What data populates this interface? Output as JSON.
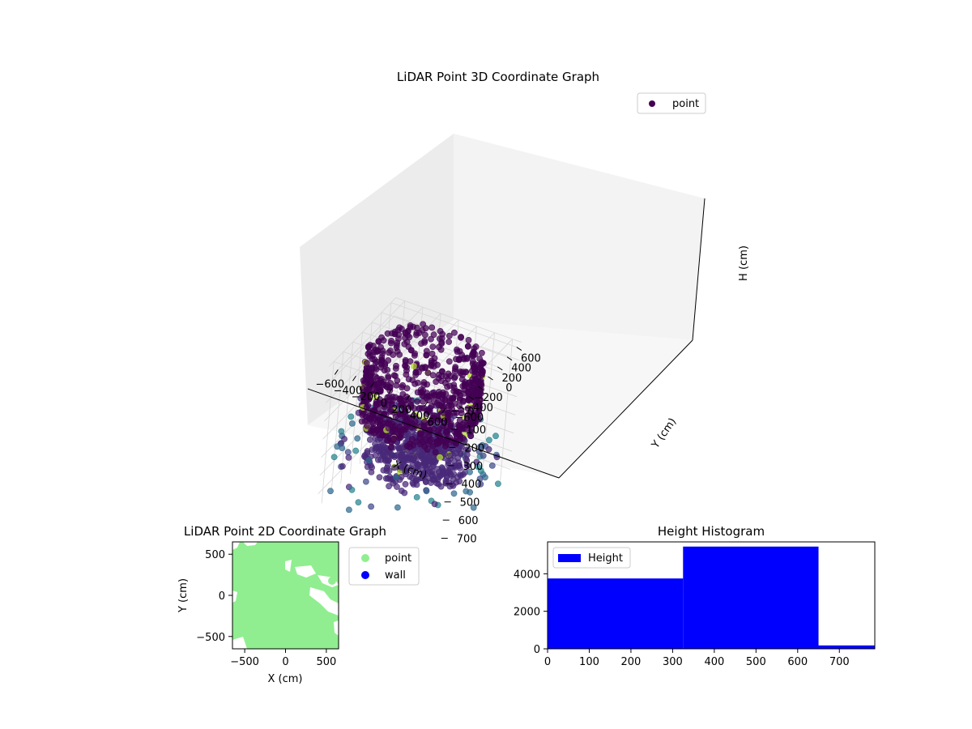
{
  "chart_data": [
    {
      "type": "scatter",
      "title": "LiDAR Point 3D Coordinate Graph",
      "xlabel": "X (cm)",
      "ylabel": "Y (cm)",
      "zlabel": "H (cm)",
      "projection": "3d",
      "x_ticks": [
        "−600",
        "−400",
        "−200",
        "0",
        "200",
        "400",
        "600"
      ],
      "y_ticks": [
        "−600",
        "−400",
        "−200",
        "0",
        "200",
        "400",
        "600"
      ],
      "z_ticks": [
        "0",
        "100",
        "200",
        "300",
        "400",
        "500",
        "600",
        "700"
      ],
      "xlim": [
        -700,
        700
      ],
      "ylim": [
        -700,
        700
      ],
      "zlim": [
        0,
        780
      ],
      "z_inverted": true,
      "colormap": "viridis",
      "legend": [
        {
          "name": "point",
          "color": "#440154"
        }
      ],
      "legend_position": "top-right",
      "grid": true
    },
    {
      "type": "scatter",
      "title": "LiDAR Point 2D Coordinate Graph",
      "xlabel": "X (cm)",
      "ylabel": "Y (cm)",
      "x_ticks": [
        "−500",
        "0",
        "500"
      ],
      "y_ticks": [
        "500",
        "0",
        "−500"
      ],
      "xlim": [
        -650,
        650
      ],
      "ylim": [
        -650,
        650
      ],
      "series": [
        {
          "name": "point",
          "color": "#90ee90"
        },
        {
          "name": "wall",
          "color": "#0000ff"
        }
      ],
      "legend_position": "outside-right"
    },
    {
      "type": "bar",
      "title": "Height Histogram",
      "legend": [
        {
          "name": "Height",
          "color": "#0000ff"
        }
      ],
      "legend_position": "top-left",
      "x_ticks": [
        "0",
        "100",
        "200",
        "300",
        "400",
        "500",
        "600",
        "700"
      ],
      "y_ticks": [
        "0",
        "2000",
        "4000"
      ],
      "xlim": [
        0,
        785
      ],
      "ylim": [
        0,
        5700
      ],
      "bins": [
        {
          "start": 0,
          "end": 325,
          "count": 3750
        },
        {
          "start": 325,
          "end": 650,
          "count": 5450
        },
        {
          "start": 650,
          "end": 785,
          "count": 180
        }
      ]
    }
  ]
}
